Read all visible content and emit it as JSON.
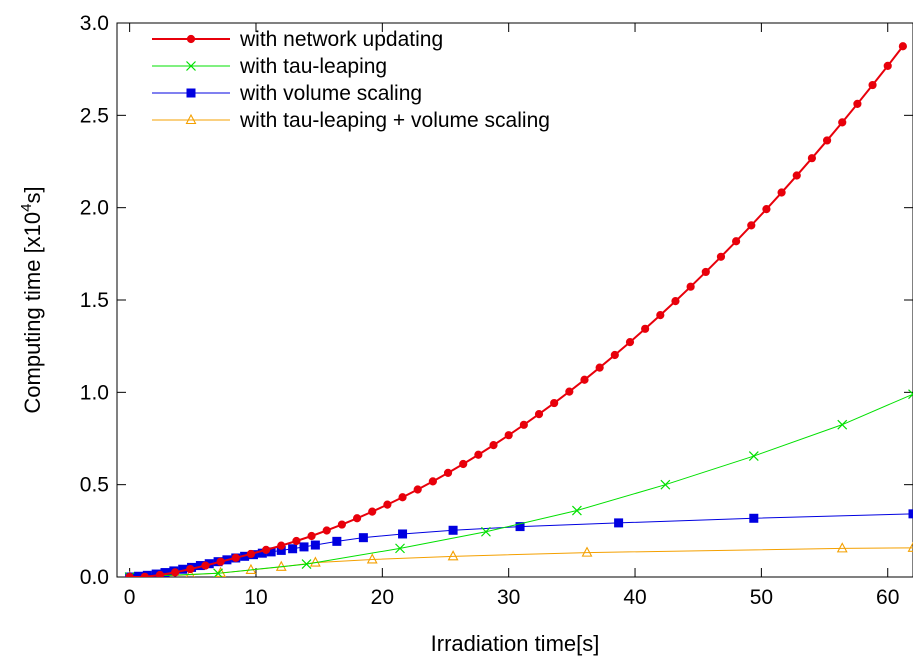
{
  "chart_data": {
    "type": "line",
    "xlabel": "Irradiation time[s]",
    "ylabel": "Computing time [x10^4s]",
    "ylabel_parts": {
      "before": "Computing time [x10",
      "sup": "4",
      "after": "s]"
    },
    "xlim": [
      -1,
      62
    ],
    "ylim": [
      0,
      3.0
    ],
    "xticks": [
      0,
      10,
      20,
      30,
      40,
      50,
      60
    ],
    "xtick_labels": [
      "0",
      "10",
      "20",
      "30",
      "40",
      "50",
      "60"
    ],
    "yticks": [
      0,
      0.5,
      1.0,
      1.5,
      2.0,
      2.5,
      3.0
    ],
    "ytick_labels": [
      "0.0",
      "0.5",
      "1.0",
      "1.5",
      "2.0",
      "2.5",
      "3.0"
    ],
    "grid": false,
    "legend_position": "top-left",
    "series": [
      {
        "name": "with network updating",
        "color": "#e8000b",
        "marker": "circle",
        "line_width": 2,
        "x": [
          0,
          1.2,
          2.4,
          3.6,
          4.8,
          6,
          7.2,
          8.4,
          9.6,
          10.8,
          12,
          13.2,
          14.4,
          15.6,
          16.8,
          18,
          19.2,
          20.4,
          21.6,
          22.8,
          24,
          25.2,
          26.4,
          27.6,
          28.8,
          30,
          31.2,
          32.4,
          33.6,
          34.8,
          36,
          37.2,
          38.4,
          39.6,
          40.8,
          42,
          43.2,
          44.4,
          45.6,
          46.8,
          48,
          49.2,
          50.4,
          51.6,
          52.8,
          54,
          55.2,
          56.4,
          57.6,
          58.8,
          60,
          61.2
        ],
        "y": [
          0.0,
          0.001,
          0.011,
          0.025,
          0.043,
          0.062,
          0.083,
          0.104,
          0.125,
          0.147,
          0.17,
          0.195,
          0.222,
          0.252,
          0.284,
          0.318,
          0.354,
          0.392,
          0.432,
          0.474,
          0.518,
          0.564,
          0.612,
          0.662,
          0.714,
          0.768,
          0.824,
          0.882,
          0.942,
          1.004,
          1.068,
          1.134,
          1.202,
          1.272,
          1.344,
          1.418,
          1.494,
          1.572,
          1.652,
          1.734,
          1.818,
          1.904,
          1.992,
          2.082,
          2.174,
          2.268,
          2.364,
          2.462,
          2.562,
          2.664,
          2.768,
          2.874
        ]
      },
      {
        "name": "with tau-leaping",
        "color": "#00e000",
        "marker": "x",
        "line_width": 1,
        "x": [
          0,
          7,
          14,
          21.4,
          28.2,
          35.4,
          42.4,
          49.4,
          56.4,
          62
        ],
        "y": [
          0.0,
          0.02,
          0.07,
          0.155,
          0.245,
          0.36,
          0.5,
          0.655,
          0.825,
          0.99
        ]
      },
      {
        "name": "with volume scaling",
        "color": "#0000e0",
        "marker": "square",
        "line_width": 1,
        "x": [
          0,
          0.7,
          1.4,
          2.1,
          2.8,
          3.5,
          4.2,
          4.9,
          5.6,
          6.3,
          7,
          7.7,
          8.4,
          9.1,
          9.8,
          10.5,
          11.2,
          12,
          12.9,
          13.8,
          14.7,
          16.4,
          18.5,
          21.6,
          25.6,
          30.9,
          38.7,
          49.4,
          62
        ],
        "y": [
          0.0,
          0.004,
          0.009,
          0.016,
          0.024,
          0.033,
          0.042,
          0.052,
          0.062,
          0.072,
          0.083,
          0.093,
          0.103,
          0.112,
          0.121,
          0.129,
          0.136,
          0.144,
          0.153,
          0.163,
          0.173,
          0.193,
          0.213,
          0.233,
          0.253,
          0.273,
          0.293,
          0.318,
          0.342
        ]
      },
      {
        "name": "with tau-leaping + volume scaling",
        "color": "#f4a000",
        "marker": "triangle",
        "line_width": 1,
        "x": [
          0,
          2.4,
          4.8,
          7.2,
          9.6,
          12,
          14.7,
          19.2,
          25.6,
          36.2,
          56.4,
          62
        ],
        "y": [
          0.0,
          0.005,
          0.012,
          0.022,
          0.038,
          0.055,
          0.078,
          0.095,
          0.112,
          0.132,
          0.155,
          0.158
        ]
      }
    ]
  }
}
